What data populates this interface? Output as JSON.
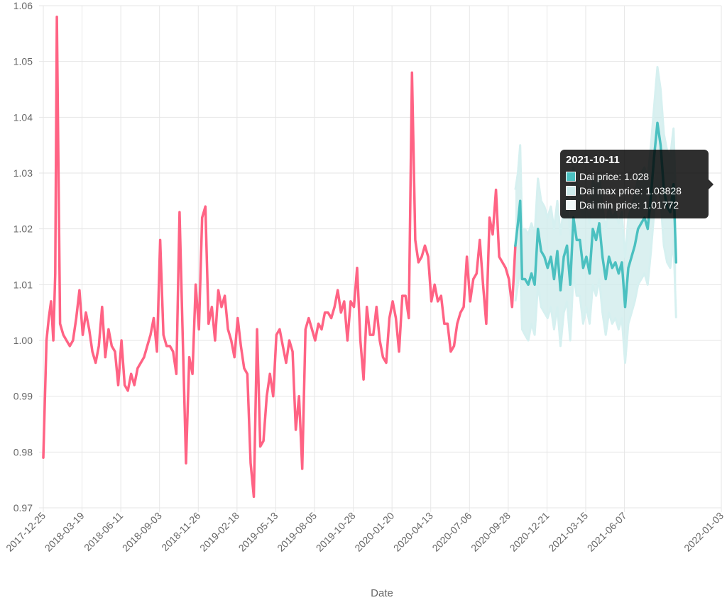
{
  "chart_data": {
    "type": "line",
    "title": "",
    "xlabel": "Date",
    "ylabel": "",
    "ylim": [
      0.97,
      1.06
    ],
    "yticks": [
      "0.97",
      "0.98",
      "0.99",
      "1.00",
      "1.01",
      "1.02",
      "1.03",
      "1.04",
      "1.05",
      "1.06"
    ],
    "xticks": [
      "2017-12-25",
      "2018-03-19",
      "2018-06-11",
      "2018-09-03",
      "2018-11-26",
      "2019-02-18",
      "2019-05-13",
      "2019-08-05",
      "2019-10-28",
      "2020-01-20",
      "2020-04-13",
      "2020-07-06",
      "2020-09-28",
      "2020-12-21",
      "2021-03-15",
      "2021-06-07",
      "2022-01-03"
    ],
    "xtick_weeks": [
      0,
      12,
      24,
      36,
      48,
      60,
      72,
      84,
      96,
      108,
      120,
      132,
      144,
      156,
      168,
      180,
      210
    ],
    "xlim_weeks": [
      0,
      210
    ],
    "colors": {
      "history": "#ff6384",
      "price": "#4bc0c0",
      "band_fill": "#cdebeb",
      "band_line": "#d6f0f0",
      "grid": "#e6e6e6"
    },
    "history": [
      [
        0,
        0.979
      ],
      [
        1,
        1.0
      ],
      [
        1.7,
        1.004
      ],
      [
        2.4,
        1.007
      ],
      [
        3.1,
        1.0
      ],
      [
        3.7,
        1.012
      ],
      [
        4.2,
        1.058
      ],
      [
        4.7,
        1.03
      ],
      [
        5.2,
        1.003
      ],
      [
        6.2,
        1.001
      ],
      [
        7.2,
        1.0
      ],
      [
        8.2,
        0.999
      ],
      [
        9.2,
        1.0
      ],
      [
        10.2,
        1.004
      ],
      [
        11.2,
        1.009
      ],
      [
        12.2,
        1.001
      ],
      [
        13.2,
        1.005
      ],
      [
        14.2,
        1.002
      ],
      [
        15.2,
        0.998
      ],
      [
        16.2,
        0.996
      ],
      [
        17.2,
        0.999
      ],
      [
        18.2,
        1.006
      ],
      [
        19.2,
        0.997
      ],
      [
        20.2,
        1.002
      ],
      [
        21.2,
        0.999
      ],
      [
        22.2,
        0.998
      ],
      [
        23.2,
        0.992
      ],
      [
        24.2,
        1.0
      ],
      [
        25.2,
        0.992
      ],
      [
        26.2,
        0.991
      ],
      [
        27.2,
        0.994
      ],
      [
        28.2,
        0.992
      ],
      [
        29.2,
        0.995
      ],
      [
        30.2,
        0.996
      ],
      [
        31.2,
        0.997
      ],
      [
        32.2,
        0.999
      ],
      [
        33.2,
        1.001
      ],
      [
        34.2,
        1.004
      ],
      [
        35.2,
        0.998
      ],
      [
        36.2,
        1.018
      ],
      [
        37.2,
        1.001
      ],
      [
        38.2,
        0.999
      ],
      [
        39.2,
        0.999
      ],
      [
        40.2,
        0.998
      ],
      [
        41.2,
        0.994
      ],
      [
        42.2,
        1.023
      ],
      [
        43.2,
        1.0
      ],
      [
        44.2,
        0.978
      ],
      [
        45.2,
        0.997
      ],
      [
        46.2,
        0.994
      ],
      [
        47.2,
        1.01
      ],
      [
        48.2,
        1.002
      ],
      [
        49.2,
        1.022
      ],
      [
        50.2,
        1.024
      ],
      [
        51.2,
        1.003
      ],
      [
        52.2,
        1.006
      ],
      [
        53.2,
        1.0
      ],
      [
        54.2,
        1.009
      ],
      [
        55.2,
        1.006
      ],
      [
        56.2,
        1.008
      ],
      [
        57.2,
        1.002
      ],
      [
        58.2,
        1.0
      ],
      [
        59.2,
        0.997
      ],
      [
        60.2,
        1.004
      ],
      [
        61.2,
        0.999
      ],
      [
        62.2,
        0.995
      ],
      [
        63.2,
        0.994
      ],
      [
        64.2,
        0.978
      ],
      [
        65.2,
        0.972
      ],
      [
        66.2,
        1.002
      ],
      [
        67.2,
        0.981
      ],
      [
        68.2,
        0.982
      ],
      [
        69.2,
        0.99
      ],
      [
        70.2,
        0.994
      ],
      [
        71.2,
        0.99
      ],
      [
        72.2,
        1.001
      ],
      [
        73.2,
        1.002
      ],
      [
        74.2,
        0.999
      ],
      [
        75.2,
        0.996
      ],
      [
        76.2,
        1.0
      ],
      [
        77.2,
        0.998
      ],
      [
        78.2,
        0.984
      ],
      [
        79.2,
        0.99
      ],
      [
        80.2,
        0.977
      ],
      [
        81.2,
        1.002
      ],
      [
        82.2,
        1.004
      ],
      [
        83.2,
        1.002
      ],
      [
        84.2,
        1.0
      ],
      [
        85.2,
        1.003
      ],
      [
        86.2,
        1.002
      ],
      [
        87.2,
        1.005
      ],
      [
        88.2,
        1.005
      ],
      [
        89.2,
        1.004
      ],
      [
        90.2,
        1.006
      ],
      [
        91.2,
        1.009
      ],
      [
        92.2,
        1.005
      ],
      [
        93.2,
        1.007
      ],
      [
        94.2,
        1.0
      ],
      [
        95.2,
        1.007
      ],
      [
        96.2,
        1.006
      ],
      [
        97.2,
        1.013
      ],
      [
        98.2,
        1.0
      ],
      [
        99.2,
        0.993
      ],
      [
        100.2,
        1.006
      ],
      [
        101.2,
        1.001
      ],
      [
        102.2,
        1.001
      ],
      [
        103.2,
        1.006
      ],
      [
        104.2,
        1.0
      ],
      [
        105.2,
        0.997
      ],
      [
        106.2,
        0.996
      ],
      [
        107.2,
        1.004
      ],
      [
        108.2,
        1.007
      ],
      [
        109.2,
        1.004
      ],
      [
        110.2,
        0.998
      ],
      [
        111.2,
        1.008
      ],
      [
        112.2,
        1.008
      ],
      [
        113.2,
        1.004
      ],
      [
        114.2,
        1.048
      ],
      [
        115.2,
        1.018
      ],
      [
        116.2,
        1.014
      ],
      [
        117.2,
        1.015
      ],
      [
        118.2,
        1.017
      ],
      [
        119.2,
        1.015
      ],
      [
        120.2,
        1.007
      ],
      [
        121.2,
        1.01
      ],
      [
        122.2,
        1.007
      ],
      [
        123.2,
        1.008
      ],
      [
        124.2,
        1.003
      ],
      [
        125.2,
        1.003
      ],
      [
        126.2,
        0.998
      ],
      [
        127.2,
        0.999
      ],
      [
        128.2,
        1.003
      ],
      [
        129.2,
        1.005
      ],
      [
        130.2,
        1.006
      ],
      [
        131.2,
        1.015
      ],
      [
        132.2,
        1.007
      ],
      [
        133.2,
        1.011
      ],
      [
        134.2,
        1.012
      ],
      [
        135.2,
        1.018
      ],
      [
        136.2,
        1.01
      ],
      [
        137.2,
        1.003
      ],
      [
        138.2,
        1.022
      ],
      [
        139.2,
        1.019
      ],
      [
        140.2,
        1.027
      ],
      [
        141.2,
        1.015
      ],
      [
        142.2,
        1.014
      ],
      [
        143.2,
        1.013
      ],
      [
        144.2,
        1.011
      ],
      [
        145.2,
        1.006
      ],
      [
        146.2,
        1.017
      ]
    ],
    "series": [
      {
        "name": "Dai price",
        "points": [
          [
            146.2,
            1.017
          ],
          [
            147,
            1.021
          ],
          [
            147.7,
            1.025
          ],
          [
            148.3,
            1.011
          ],
          [
            149.2,
            1.011
          ],
          [
            150.2,
            1.01
          ],
          [
            151.2,
            1.012
          ],
          [
            152.2,
            1.01
          ],
          [
            153.2,
            1.02
          ],
          [
            154.2,
            1.016
          ],
          [
            155.2,
            1.015
          ],
          [
            156.2,
            1.013
          ],
          [
            157.2,
            1.015
          ],
          [
            158.2,
            1.011
          ],
          [
            159.2,
            1.016
          ],
          [
            160.2,
            1.009
          ],
          [
            161.2,
            1.015
          ],
          [
            162.2,
            1.017
          ],
          [
            163.2,
            1.01
          ],
          [
            164.2,
            1.022
          ],
          [
            165.2,
            1.018
          ],
          [
            166.2,
            1.018
          ],
          [
            167.2,
            1.013
          ],
          [
            168.2,
            1.015
          ],
          [
            169.2,
            1.012
          ],
          [
            170.2,
            1.02
          ],
          [
            171.2,
            1.018
          ],
          [
            172.2,
            1.021
          ],
          [
            173.2,
            1.015
          ],
          [
            174.2,
            1.011
          ],
          [
            175.2,
            1.015
          ],
          [
            176.2,
            1.013
          ],
          [
            177.2,
            1.014
          ],
          [
            178.2,
            1.012
          ],
          [
            179.2,
            1.014
          ],
          [
            180.2,
            1.006
          ],
          [
            181.2,
            1.013
          ],
          [
            182.2,
            1.015
          ],
          [
            183.2,
            1.017
          ],
          [
            184.2,
            1.02
          ],
          [
            185.2,
            1.021
          ],
          [
            186.2,
            1.022
          ],
          [
            187.2,
            1.02
          ],
          [
            188.2,
            1.026
          ],
          [
            189.2,
            1.033
          ],
          [
            190.2,
            1.039
          ],
          [
            191.2,
            1.035
          ],
          [
            192.2,
            1.027
          ],
          [
            193.2,
            1.024
          ],
          [
            194.2,
            1.023
          ],
          [
            195.2,
            1.028
          ],
          [
            196,
            1.014
          ]
        ]
      },
      {
        "name": "Dai max price",
        "points": [
          [
            146.2,
            1.027
          ],
          [
            147,
            1.03
          ],
          [
            147.7,
            1.035
          ],
          [
            148.3,
            1.02
          ],
          [
            149.2,
            1.02
          ],
          [
            150.2,
            1.019
          ],
          [
            151.2,
            1.021
          ],
          [
            152.2,
            1.019
          ],
          [
            153.2,
            1.029
          ],
          [
            154.2,
            1.025
          ],
          [
            155.2,
            1.024
          ],
          [
            156.2,
            1.022
          ],
          [
            157.2,
            1.024
          ],
          [
            158.2,
            1.02
          ],
          [
            159.2,
            1.025
          ],
          [
            160.2,
            1.019
          ],
          [
            161.2,
            1.024
          ],
          [
            162.2,
            1.026
          ],
          [
            163.2,
            1.019
          ],
          [
            164.2,
            1.031
          ],
          [
            165.2,
            1.028
          ],
          [
            166.2,
            1.027
          ],
          [
            167.2,
            1.022
          ],
          [
            168.2,
            1.025
          ],
          [
            169.2,
            1.021
          ],
          [
            170.2,
            1.029
          ],
          [
            171.2,
            1.027
          ],
          [
            172.2,
            1.03
          ],
          [
            173.2,
            1.024
          ],
          [
            174.2,
            1.02
          ],
          [
            175.2,
            1.024
          ],
          [
            176.2,
            1.022
          ],
          [
            177.2,
            1.023
          ],
          [
            178.2,
            1.021
          ],
          [
            179.2,
            1.023
          ],
          [
            180.2,
            1.015
          ],
          [
            181.2,
            1.022
          ],
          [
            182.2,
            1.024
          ],
          [
            183.2,
            1.026
          ],
          [
            184.2,
            1.029
          ],
          [
            185.2,
            1.03
          ],
          [
            186.2,
            1.031
          ],
          [
            187.2,
            1.029
          ],
          [
            188.2,
            1.035
          ],
          [
            189.2,
            1.042
          ],
          [
            190.2,
            1.049
          ],
          [
            191.2,
            1.045
          ],
          [
            192.2,
            1.037
          ],
          [
            193.2,
            1.034
          ],
          [
            194.2,
            1.033
          ],
          [
            195.2,
            1.038
          ],
          [
            196,
            1.024
          ]
        ]
      },
      {
        "name": "Dai min price",
        "points": [
          [
            146.2,
            1.007
          ],
          [
            147,
            1.01
          ],
          [
            147.7,
            1.014
          ],
          [
            148.3,
            1.002
          ],
          [
            149.2,
            1.001
          ],
          [
            150.2,
            1.0
          ],
          [
            151.2,
            1.003
          ],
          [
            152.2,
            1.001
          ],
          [
            153.2,
            1.01
          ],
          [
            154.2,
            1.006
          ],
          [
            155.2,
            1.005
          ],
          [
            156.2,
            1.004
          ],
          [
            157.2,
            1.006
          ],
          [
            158.2,
            1.002
          ],
          [
            159.2,
            1.006
          ],
          [
            160.2,
            0.999
          ],
          [
            161.2,
            1.005
          ],
          [
            162.2,
            1.007
          ],
          [
            163.2,
            1.0
          ],
          [
            164.2,
            1.012
          ],
          [
            165.2,
            1.008
          ],
          [
            166.2,
            1.008
          ],
          [
            167.2,
            1.003
          ],
          [
            168.2,
            1.006
          ],
          [
            169.2,
            1.003
          ],
          [
            170.2,
            1.01
          ],
          [
            171.2,
            1.008
          ],
          [
            172.2,
            1.011
          ],
          [
            173.2,
            1.005
          ],
          [
            174.2,
            1.001
          ],
          [
            175.2,
            1.005
          ],
          [
            176.2,
            1.003
          ],
          [
            177.2,
            1.004
          ],
          [
            178.2,
            1.002
          ],
          [
            179.2,
            1.004
          ],
          [
            180.2,
            0.996
          ],
          [
            181.2,
            1.003
          ],
          [
            182.2,
            1.005
          ],
          [
            183.2,
            1.007
          ],
          [
            184.2,
            1.01
          ],
          [
            185.2,
            1.011
          ],
          [
            186.2,
            1.012
          ],
          [
            187.2,
            1.01
          ],
          [
            188.2,
            1.016
          ],
          [
            189.2,
            1.023
          ],
          [
            190.2,
            1.029
          ],
          [
            191.2,
            1.025
          ],
          [
            192.2,
            1.017
          ],
          [
            193.2,
            1.014
          ],
          [
            194.2,
            1.013
          ],
          [
            195.2,
            1.018
          ],
          [
            196,
            1.004
          ]
        ]
      }
    ],
    "tooltip": {
      "title": "2021-10-11",
      "rows": [
        {
          "label": "Dai price: 1.028",
          "color": "#4bc0c0"
        },
        {
          "label": "Dai max price: 1.03828",
          "color": "#cdebeb"
        },
        {
          "label": "Dai min price: 1.01772",
          "color": "#f0f8f8"
        }
      ]
    }
  }
}
